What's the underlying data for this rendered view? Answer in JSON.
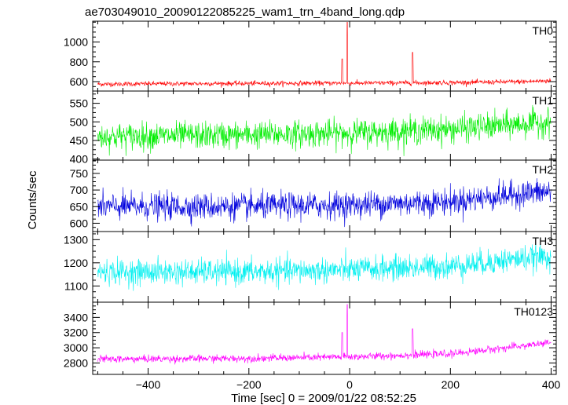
{
  "title": "ae703049010_20090122085225_wam1_trn_4band_long.qdp",
  "xlabel": "Time [sec] 0 = 2009/01/22 08:52:25",
  "ylabel": "Counts/sec",
  "chart_data": [
    {
      "type": "line",
      "name": "TH0",
      "color": "#ff0000",
      "xlim": [
        -510,
        410
      ],
      "ylim": [
        505,
        1210
      ],
      "yticks": [
        600,
        800,
        1000
      ],
      "base": [
        [
          -500,
          575
        ],
        [
          -300,
          580
        ],
        [
          0,
          585
        ],
        [
          200,
          590
        ],
        [
          350,
          600
        ],
        [
          400,
          610
        ]
      ],
      "noise": 20,
      "spikes": [
        [
          -15,
          830
        ],
        [
          -5,
          1200
        ],
        [
          125,
          895
        ]
      ],
      "x": [
        -500,
        -400,
        -300,
        -200,
        -100,
        0,
        100,
        200,
        300,
        400
      ],
      "y": [
        575,
        578,
        580,
        582,
        584,
        585,
        588,
        590,
        598,
        610
      ]
    },
    {
      "type": "line",
      "name": "TH1",
      "color": "#00ee00",
      "xlim": [
        -510,
        410
      ],
      "ylim": [
        397,
        583
      ],
      "yticks": [
        400,
        450,
        500,
        550
      ],
      "base": [
        [
          -500,
          460
        ],
        [
          -200,
          465
        ],
        [
          0,
          470
        ],
        [
          200,
          480
        ],
        [
          350,
          495
        ],
        [
          400,
          500
        ]
      ],
      "noise": 30,
      "spikes": [],
      "x": [
        -500,
        -400,
        -300,
        -200,
        -100,
        0,
        100,
        200,
        300,
        400
      ],
      "y": [
        460,
        462,
        463,
        465,
        468,
        470,
        475,
        480,
        490,
        500
      ]
    },
    {
      "type": "line",
      "name": "TH2",
      "color": "#0000dd",
      "xlim": [
        -510,
        410
      ],
      "ylim": [
        575,
        790
      ],
      "yticks": [
        600,
        650,
        700,
        750
      ],
      "base": [
        [
          -500,
          650
        ],
        [
          -200,
          650
        ],
        [
          0,
          655
        ],
        [
          200,
          665
        ],
        [
          350,
          690
        ],
        [
          400,
          695
        ]
      ],
      "noise": 33,
      "spikes": [],
      "x": [
        -500,
        -400,
        -300,
        -200,
        -100,
        0,
        100,
        200,
        300,
        400
      ],
      "y": [
        650,
        650,
        650,
        650,
        652,
        655,
        660,
        665,
        680,
        695
      ]
    },
    {
      "type": "line",
      "name": "TH3",
      "color": "#00f0f0",
      "xlim": [
        -510,
        410
      ],
      "ylim": [
        1030,
        1335
      ],
      "yticks": [
        1100,
        1200,
        1300
      ],
      "base": [
        [
          -500,
          1160
        ],
        [
          -200,
          1160
        ],
        [
          0,
          1170
        ],
        [
          200,
          1185
        ],
        [
          350,
          1220
        ],
        [
          400,
          1230
        ]
      ],
      "noise": 45,
      "spikes": [],
      "x": [
        -500,
        -400,
        -300,
        -200,
        -100,
        0,
        100,
        200,
        300,
        400
      ],
      "y": [
        1160,
        1160,
        1160,
        1160,
        1165,
        1170,
        1178,
        1185,
        1210,
        1230
      ]
    },
    {
      "type": "line",
      "name": "TH0123",
      "color": "#ff00ff",
      "xlim": [
        -510,
        410
      ],
      "ylim": [
        2650,
        3600
      ],
      "yticks": [
        2800,
        3000,
        3200,
        3400
      ],
      "base": [
        [
          -500,
          2850
        ],
        [
          -200,
          2860
        ],
        [
          0,
          2880
        ],
        [
          200,
          2920
        ],
        [
          350,
          3030
        ],
        [
          400,
          3070
        ]
      ],
      "noise": 40,
      "spikes": [
        [
          -15,
          3200
        ],
        [
          -5,
          3570
        ],
        [
          125,
          3250
        ]
      ],
      "x": [
        -500,
        -400,
        -300,
        -200,
        -100,
        0,
        100,
        200,
        300,
        400
      ],
      "y": [
        2850,
        2852,
        2855,
        2860,
        2870,
        2880,
        2900,
        2920,
        2990,
        3070
      ]
    }
  ],
  "xticks": [
    -400,
    -200,
    0,
    200,
    400
  ]
}
